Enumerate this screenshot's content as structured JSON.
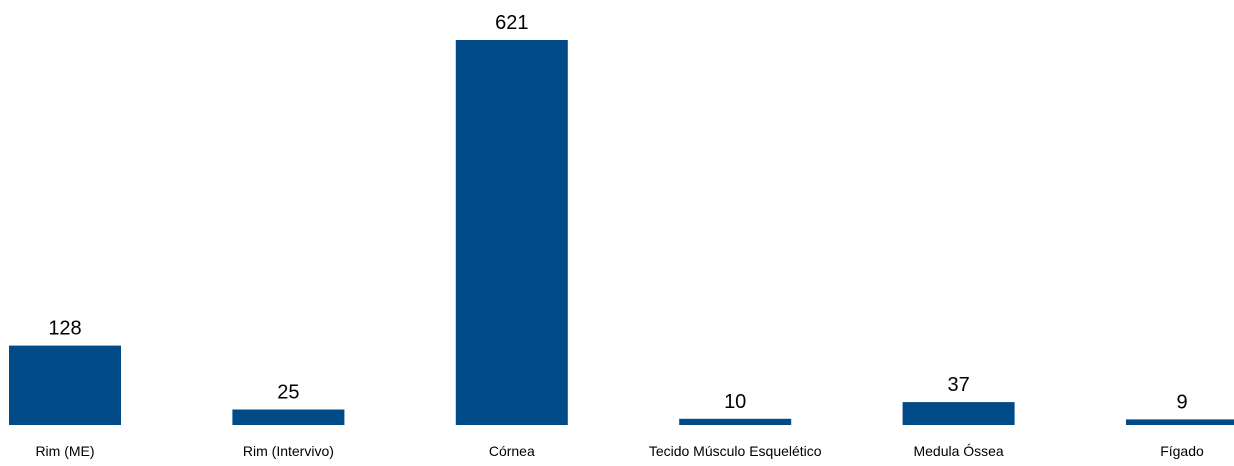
{
  "chart_data": {
    "type": "bar",
    "title": "",
    "xlabel": "",
    "ylabel": "",
    "categories": [
      "Rim (ME)",
      "Rim (Intervivo)",
      "Córnea",
      "Tecido Músculo Esquelético",
      "Medula Óssea",
      "Fígado"
    ],
    "values": [
      128,
      25,
      621,
      10,
      37,
      9
    ],
    "ylim": [
      0,
      621
    ],
    "grid": false,
    "legend": "none",
    "bar_color": "#004A87"
  }
}
